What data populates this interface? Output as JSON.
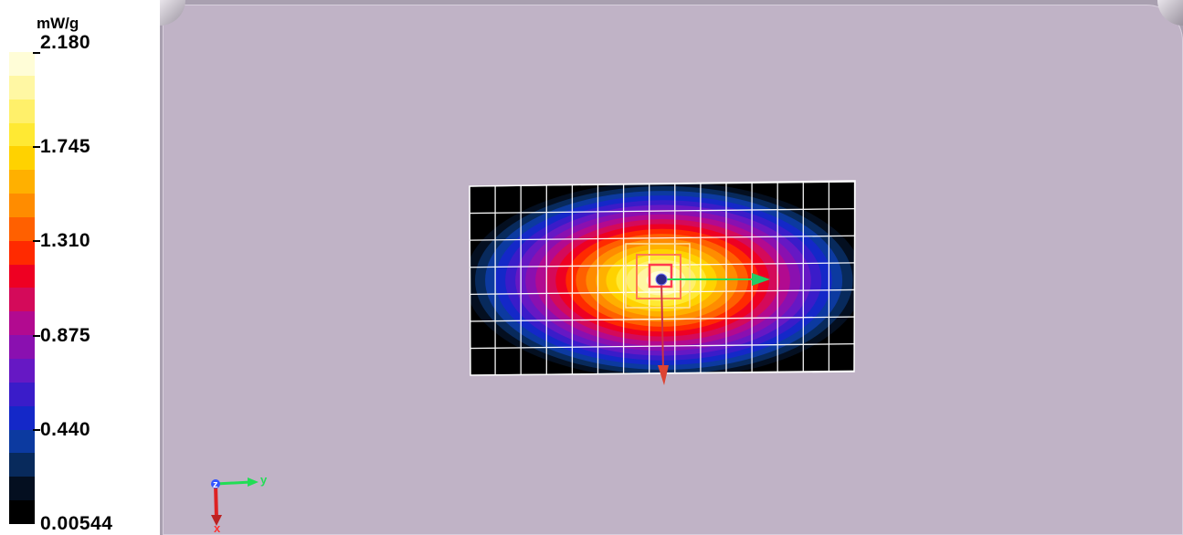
{
  "legend": {
    "unit": "mW/g",
    "labels": [
      "2.180",
      "1.745",
      "1.310",
      "0.875",
      "0.440",
      "0.00544"
    ],
    "colors": [
      "#fffdd7",
      "#fff7a3",
      "#fff06a",
      "#ffe933",
      "#ffd200",
      "#ffb000",
      "#ff8c00",
      "#ff6000",
      "#ff2a00",
      "#ee0022",
      "#d40a5a",
      "#b20a90",
      "#8a10b0",
      "#6618c4",
      "#3a1cc9",
      "#1428c8",
      "#0c3aa0",
      "#082a5c",
      "#040f20",
      "#000000"
    ]
  },
  "viewport": {
    "background": "#c0b3c6",
    "axes_triad": {
      "labels": [
        "y",
        "z",
        "x"
      ],
      "colors": [
        "#22dd55",
        "#3355ff",
        "#ff3333"
      ]
    }
  },
  "icons": {
    "probe": "probe-position-marker-icon",
    "axes": "axis-triad-icon"
  }
}
